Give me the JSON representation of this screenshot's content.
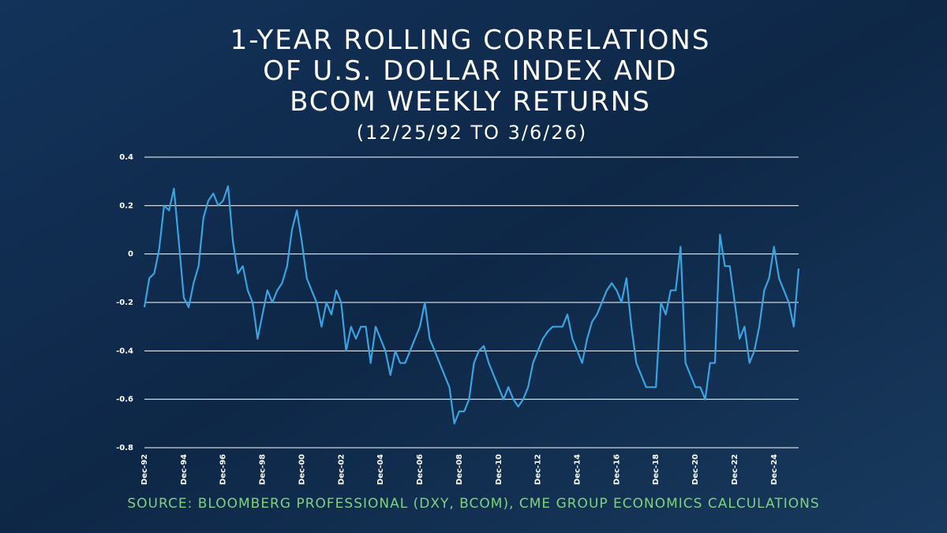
{
  "chart_data": {
    "type": "line",
    "title": [
      "1-YEAR ROLLING CORRELATIONS",
      "OF U.S. DOLLAR INDEX AND",
      "BCOM WEEKLY RETURNS"
    ],
    "subtitle": "(12/25/92 TO 3/6/26)",
    "source": "SOURCE: BLOOMBERG PROFESSIONAL (DXY, BCOM), CME GROUP ECONOMICS CALCULATIONS",
    "x": [
      "Dec-92",
      "Mar-93",
      "Jun-93",
      "Sep-93",
      "Dec-93",
      "Mar-94",
      "Jun-94",
      "Sep-94",
      "Dec-94",
      "Mar-95",
      "Jun-95",
      "Sep-95",
      "Dec-95",
      "Mar-96",
      "Jun-96",
      "Sep-96",
      "Dec-96",
      "Mar-97",
      "Jun-97",
      "Sep-97",
      "Dec-97",
      "Mar-98",
      "Jun-98",
      "Sep-98",
      "Dec-98",
      "Mar-99",
      "Jun-99",
      "Sep-99",
      "Dec-99",
      "Mar-00",
      "Jun-00",
      "Sep-00",
      "Dec-00",
      "Mar-01",
      "Jun-01",
      "Sep-01",
      "Dec-01",
      "Mar-02",
      "Jun-02",
      "Sep-02",
      "Dec-02",
      "Mar-03",
      "Jun-03",
      "Sep-03",
      "Dec-03",
      "Mar-04",
      "Jun-04",
      "Sep-04",
      "Dec-04",
      "Mar-05",
      "Jun-05",
      "Sep-05",
      "Dec-05",
      "Mar-06",
      "Jun-06",
      "Sep-06",
      "Dec-06",
      "Mar-07",
      "Jun-07",
      "Sep-07",
      "Dec-07",
      "Mar-08",
      "Jun-08",
      "Sep-08",
      "Dec-08",
      "Mar-09",
      "Jun-09",
      "Sep-09",
      "Dec-09",
      "Mar-10",
      "Jun-10",
      "Sep-10",
      "Dec-10",
      "Mar-11",
      "Jun-11",
      "Sep-11",
      "Dec-11",
      "Mar-12",
      "Jun-12",
      "Sep-12",
      "Dec-12",
      "Mar-13",
      "Jun-13",
      "Sep-13",
      "Dec-13",
      "Mar-14",
      "Jun-14",
      "Sep-14",
      "Dec-14",
      "Mar-15",
      "Jun-15",
      "Sep-15",
      "Dec-15",
      "Mar-16",
      "Jun-16",
      "Sep-16",
      "Dec-16",
      "Mar-17",
      "Jun-17",
      "Sep-17",
      "Dec-17",
      "Mar-18",
      "Jun-18",
      "Sep-18",
      "Dec-18",
      "Mar-19",
      "Jun-19",
      "Sep-19",
      "Dec-19",
      "Mar-20",
      "Jun-20",
      "Sep-20",
      "Dec-20",
      "Mar-21",
      "Jun-21",
      "Sep-21",
      "Dec-21",
      "Mar-22",
      "Jun-22",
      "Sep-22",
      "Dec-22",
      "Mar-23",
      "Jun-23",
      "Sep-23",
      "Dec-23",
      "Mar-24",
      "Jun-24",
      "Sep-24",
      "Dec-24",
      "Mar-25",
      "Jun-25",
      "Sep-25",
      "Dec-25",
      "Mar-26"
    ],
    "series": [
      {
        "color": "#3aa3e0",
        "values": [
          -0.22,
          -0.1,
          -0.08,
          0.02,
          0.2,
          0.18,
          0.27,
          0.05,
          -0.18,
          -0.22,
          -0.12,
          -0.05,
          0.15,
          0.22,
          0.25,
          0.2,
          0.22,
          0.28,
          0.05,
          -0.08,
          -0.05,
          -0.15,
          -0.2,
          -0.35,
          -0.25,
          -0.15,
          -0.2,
          -0.15,
          -0.12,
          -0.05,
          0.1,
          0.18,
          0.05,
          -0.1,
          -0.15,
          -0.2,
          -0.3,
          -0.2,
          -0.25,
          -0.15,
          -0.2,
          -0.4,
          -0.3,
          -0.35,
          -0.3,
          -0.3,
          -0.45,
          -0.3,
          -0.35,
          -0.4,
          -0.5,
          -0.4,
          -0.45,
          -0.45,
          -0.4,
          -0.35,
          -0.3,
          -0.2,
          -0.35,
          -0.4,
          -0.45,
          -0.5,
          -0.55,
          -0.7,
          -0.65,
          -0.65,
          -0.6,
          -0.45,
          -0.4,
          -0.38,
          -0.45,
          -0.5,
          -0.55,
          -0.6,
          -0.55,
          -0.6,
          -0.63,
          -0.6,
          -0.55,
          -0.45,
          -0.4,
          -0.35,
          -0.32,
          -0.3,
          -0.3,
          -0.3,
          -0.25,
          -0.35,
          -0.4,
          -0.45,
          -0.35,
          -0.28,
          -0.25,
          -0.2,
          -0.15,
          -0.12,
          -0.15,
          -0.2,
          -0.1,
          -0.3,
          -0.45,
          -0.5,
          -0.55,
          -0.55,
          -0.55,
          -0.2,
          -0.25,
          -0.15,
          -0.15,
          0.03,
          -0.45,
          -0.5,
          -0.55,
          -0.55,
          -0.6,
          -0.45,
          -0.45,
          0.08,
          -0.05,
          -0.05,
          -0.2,
          -0.35,
          -0.3,
          -0.45,
          -0.4,
          -0.3,
          -0.15,
          -0.1,
          0.03,
          -0.1,
          -0.15,
          -0.2,
          -0.3,
          -0.06
        ]
      }
    ],
    "xticks": [
      "Dec-92",
      "Dec-94",
      "Dec-96",
      "Dec-98",
      "Dec-00",
      "Dec-02",
      "Dec-04",
      "Dec-06",
      "Dec-08",
      "Dec-10",
      "Dec-12",
      "Dec-14",
      "Dec-16",
      "Dec-18",
      "Dec-20",
      "Dec-22",
      "Dec-24"
    ],
    "ylim": [
      -0.8,
      0.4
    ],
    "yticks": [
      0.4,
      0.2,
      0,
      -0.2,
      -0.4,
      -0.6,
      -0.8
    ],
    "grid": true
  }
}
